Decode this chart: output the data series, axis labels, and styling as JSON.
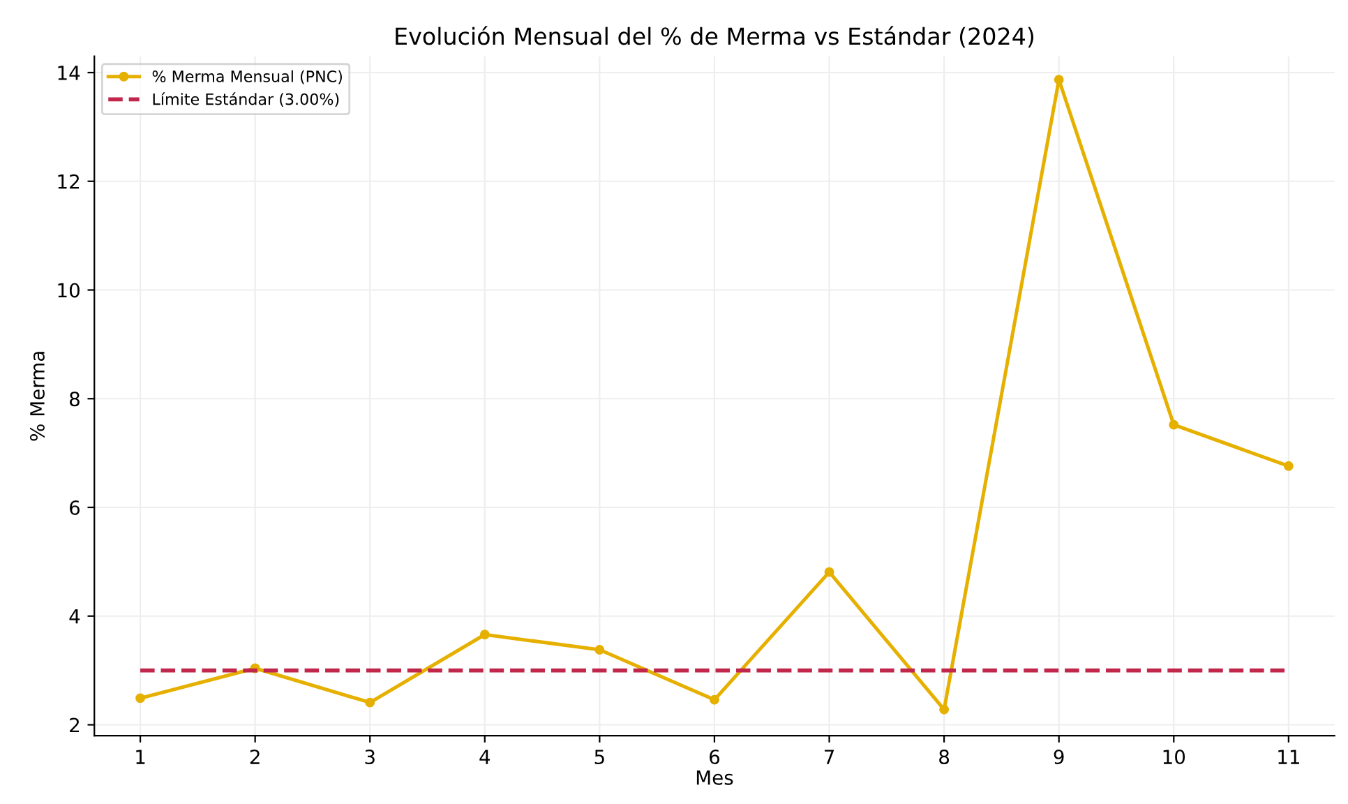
{
  "chart_data": {
    "type": "line",
    "title": "Evolución Mensual del % de Merma vs Estándar (2024)",
    "xlabel": "Mes",
    "ylabel": "% Merma",
    "x": [
      1,
      2,
      3,
      4,
      5,
      6,
      7,
      8,
      9,
      10,
      11
    ],
    "series": [
      {
        "name": "% Merma Mensual (PNC)",
        "color": "#e6b000",
        "values": [
          2.49,
          3.04,
          2.41,
          3.66,
          3.38,
          2.46,
          4.81,
          2.28,
          13.87,
          7.52,
          6.76
        ],
        "marker": "circle",
        "line_style": "solid"
      },
      {
        "name": "Límite Estándar (3.00%)",
        "color": "#c0274b",
        "values": [
          3.0,
          3.0,
          3.0,
          3.0,
          3.0,
          3.0,
          3.0,
          3.0,
          3.0,
          3.0,
          3.0
        ],
        "marker": "none",
        "line_style": "dashed"
      }
    ],
    "xlim": [
      0.6,
      11.4
    ],
    "xticks": [
      1,
      2,
      3,
      4,
      5,
      6,
      7,
      8,
      9,
      10,
      11
    ],
    "ylim": [
      1.8,
      14.3
    ],
    "yticks": [
      2,
      4,
      6,
      8,
      10,
      12,
      14
    ],
    "grid": true,
    "legend": "top left"
  }
}
